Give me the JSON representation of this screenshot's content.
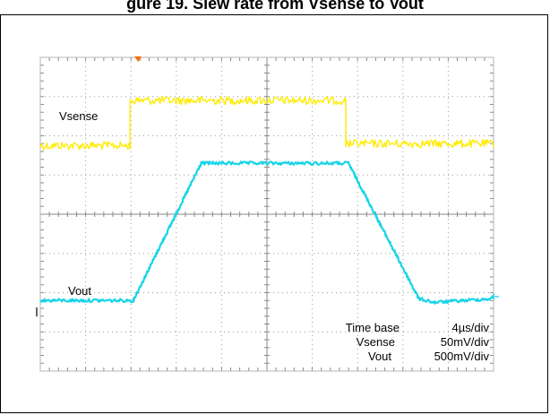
{
  "figure": {
    "title": "gure 19. Slew rate from Vsense to Vout"
  },
  "chart_data": {
    "type": "line",
    "title": "gure 19. Slew rate from Vsense to Vout",
    "xlabel": "",
    "ylabel": "",
    "x_unit": "div",
    "y_unit": "div",
    "xlim": [
      0,
      10
    ],
    "ylim": [
      0,
      8
    ],
    "grid": true,
    "series": [
      {
        "name": "Vsense",
        "color": "#ffeb00",
        "x": [
          0,
          1.98,
          1.98,
          6.74,
          6.74,
          10
        ],
        "y": [
          5.75,
          5.75,
          6.9,
          6.9,
          5.8,
          5.8
        ]
      },
      {
        "name": "Vout",
        "color": "#17d4e8",
        "x": [
          0,
          2.05,
          3.55,
          6.8,
          8.35,
          8.7,
          10
        ],
        "y": [
          1.8,
          1.8,
          5.3,
          5.3,
          1.85,
          1.75,
          1.85
        ]
      }
    ],
    "annotations": {
      "time_base_label": "Time base",
      "time_base_value": "4µs/div",
      "vsense_scale_label": "Vsense",
      "vsense_scale_value": "50mV/div",
      "vout_scale_label": "Vout",
      "vout_scale_value": "500mV/div"
    },
    "colors": {
      "trigger_marker": "#ff6a00",
      "level_marker": "#17d4e8"
    }
  }
}
